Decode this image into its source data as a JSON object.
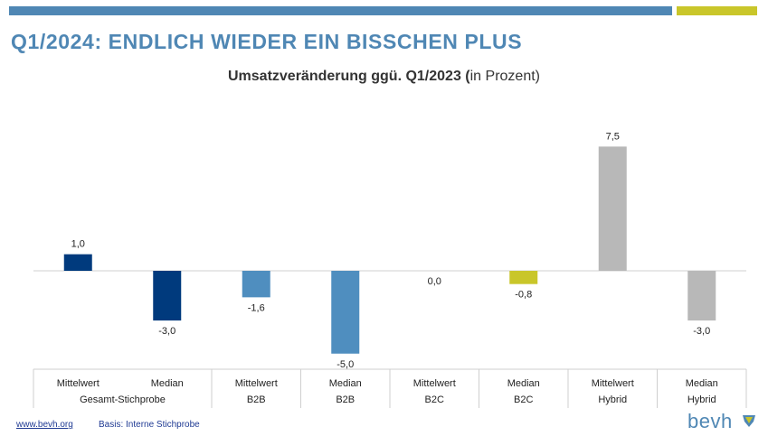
{
  "header": {
    "title": "Q1/2024: ENDLICH WIEDER EIN BISSCHEN PLUS",
    "band_colors": [
      "#4f87b4",
      "#c9c62a"
    ]
  },
  "chart_title": {
    "bold": "Umsatzveränderung ggü. Q1/2023 (",
    "normal": "in Prozent)"
  },
  "chart_data": {
    "type": "bar",
    "title": "Umsatzveränderung ggü. Q1/2023 (in Prozent)",
    "ylim": [
      -5.5,
      8
    ],
    "grid": false,
    "categories": [
      {
        "measure": "Mittelwert",
        "group": "Gesamt-Stichprobe"
      },
      {
        "measure": "Median",
        "group": "Gesamt-Stichprobe"
      },
      {
        "measure": "Mittelwert",
        "group": "B2B"
      },
      {
        "measure": "Median",
        "group": "B2B"
      },
      {
        "measure": "Mittelwert",
        "group": "B2C"
      },
      {
        "measure": "Median",
        "group": "B2C"
      },
      {
        "measure": "Mittelwert",
        "group": "Hybrid"
      },
      {
        "measure": "Median",
        "group": "Hybrid"
      }
    ],
    "values": [
      1.0,
      -3.0,
      -1.6,
      -5.0,
      0.0,
      -0.8,
      7.5,
      -3.0
    ],
    "labels": [
      "1,0",
      "-3,0",
      "-1,6",
      "-5,0",
      "0,0",
      "-0,8",
      "7,5",
      "-3,0"
    ],
    "colors": [
      "#003a7d",
      "#003a7d",
      "#4f8ebf",
      "#4f8ebf",
      "#4f8ebf",
      "#c9c62a",
      "#b8b8b8",
      "#b8b8b8"
    ],
    "group_rows": [
      {
        "label": "Gesamt-Stichprobe",
        "span": 2
      },
      {
        "label": "B2B",
        "span": 1
      },
      {
        "label": "B2B",
        "span": 1
      },
      {
        "label": "B2C",
        "span": 1
      },
      {
        "label": "B2C",
        "span": 1
      },
      {
        "label": "Hybrid",
        "span": 1
      },
      {
        "label": "Hybrid",
        "span": 1
      }
    ]
  },
  "footer": {
    "link": "www.bevh.org",
    "basis": "Basis: Interne Stichprobe"
  },
  "logo": {
    "text": "bevh",
    "color": "#4f87b4",
    "accent": "#c9c62a",
    "mark_icon": "bevh-logo-mark"
  }
}
